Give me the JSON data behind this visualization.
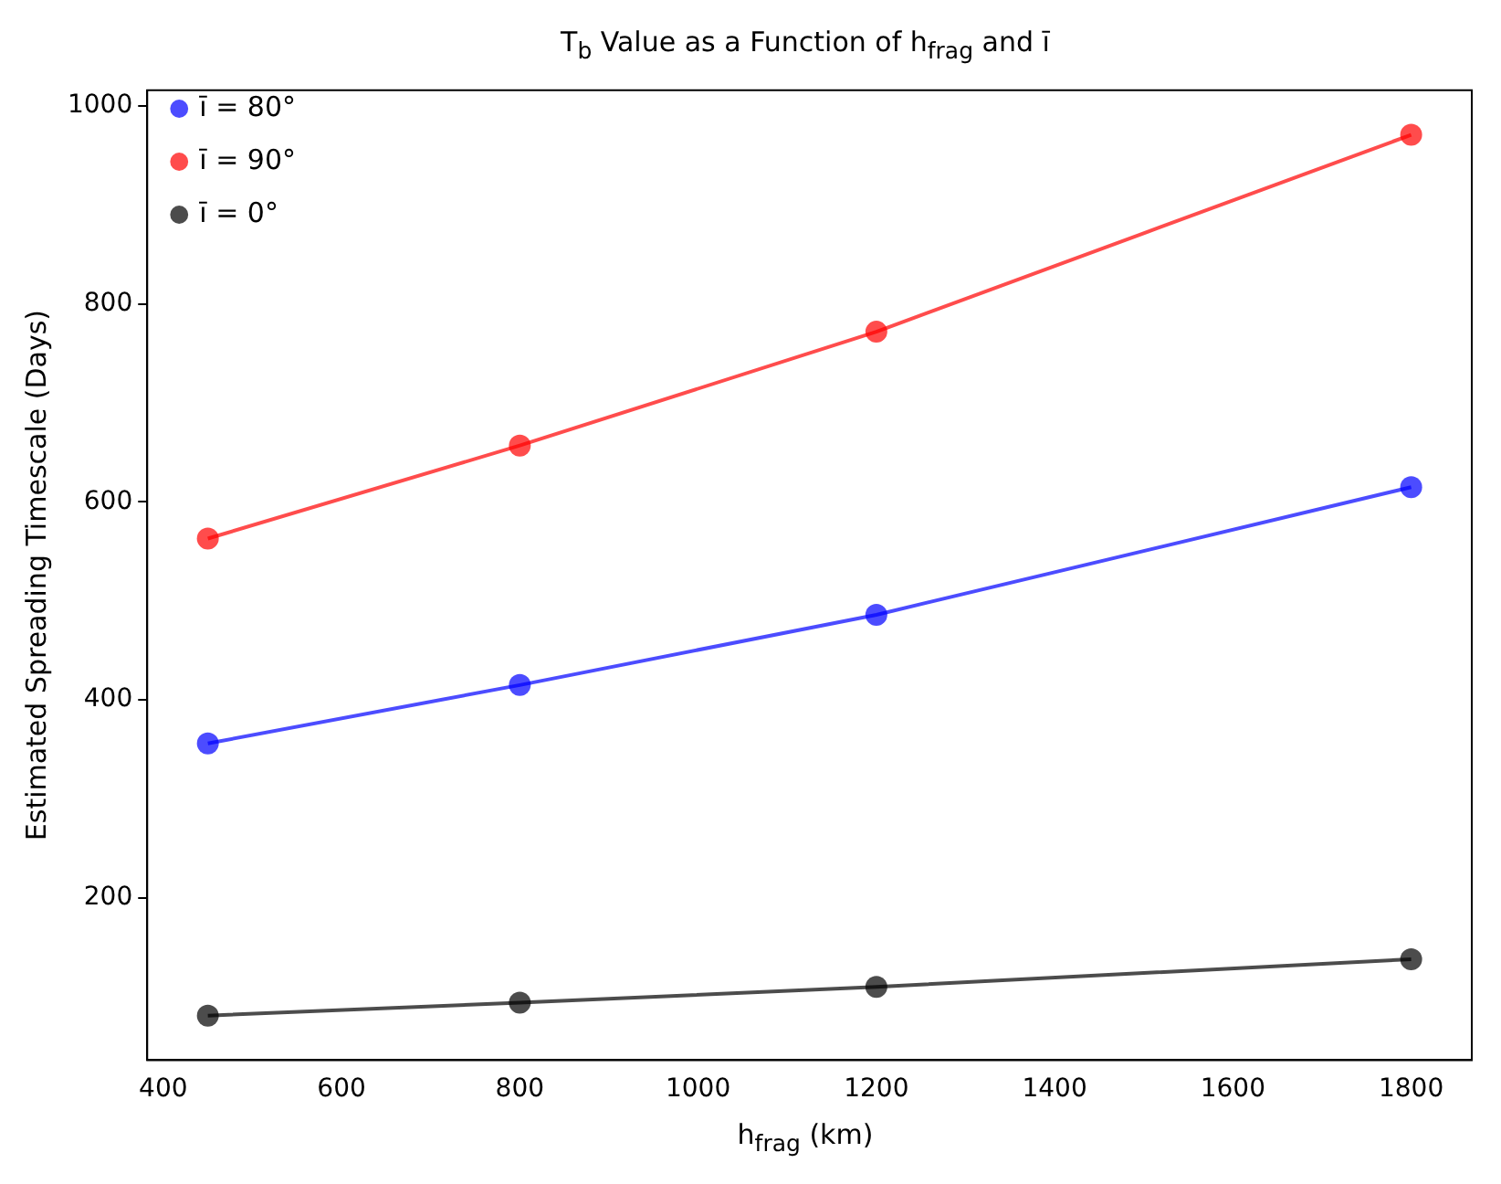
{
  "chart_data": {
    "type": "line",
    "title": "T$_{b}$ Value as a Function of h$_{frag}$ and ī",
    "xlabel": "h$_{frag}$ (km)",
    "ylabel": "Estimated Spreading Timescale (Days)",
    "x": [
      450,
      800,
      1200,
      1800
    ],
    "series": [
      {
        "name": "ī = 80°",
        "color": "#0000ff",
        "values": [
          356,
          415,
          486,
          615
        ]
      },
      {
        "name": "ī = 90°",
        "color": "#ff0000",
        "values": [
          563,
          657,
          772,
          971
        ]
      },
      {
        "name": "ī = 0°",
        "color": "#000000",
        "values": [
          81,
          94,
          110,
          138
        ]
      }
    ],
    "xlim": [
      382,
      1868
    ],
    "xticks": [
      400,
      600,
      800,
      1000,
      1200,
      1400,
      1600,
      1800
    ],
    "ylim": [
      36,
      1016
    ],
    "yticks": [
      200,
      400,
      600,
      800,
      1000
    ],
    "grid": false,
    "legend": "top left",
    "marker": "circle",
    "line_style": "solid"
  }
}
